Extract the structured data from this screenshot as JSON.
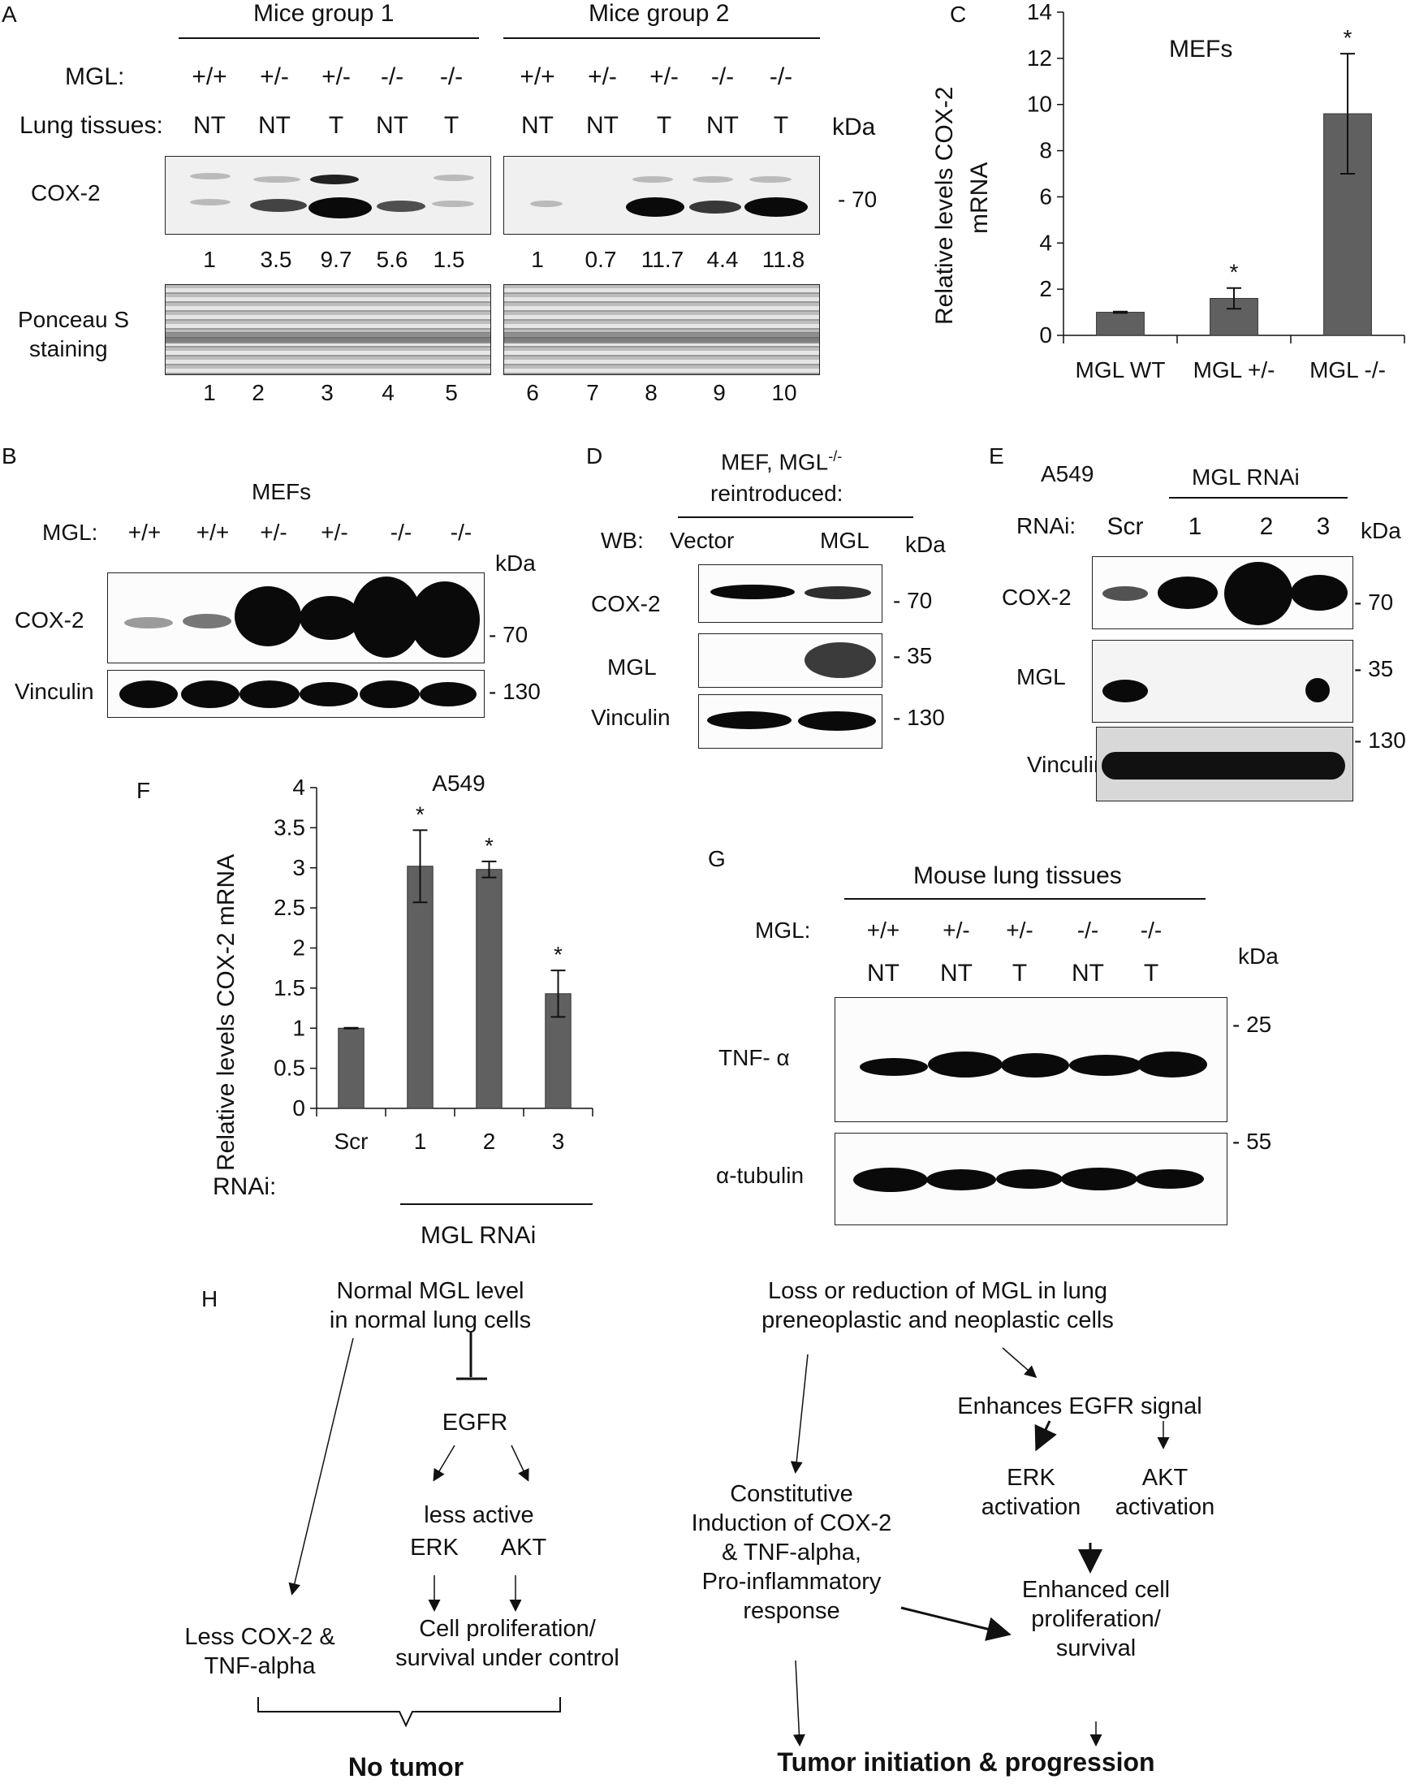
{
  "panels": {
    "A": {
      "letter": "A",
      "group1": "Mice group 1",
      "group2": "Mice group 2",
      "mgl_label": "MGL:",
      "tissue_label": "Lung tissues:",
      "genotypes_g1": [
        "+/+",
        "+/-",
        "+/-",
        "-/-",
        "-/-"
      ],
      "genotypes_g2": [
        "+/+",
        "+/-",
        "+/-",
        "-/-",
        "-/-"
      ],
      "tissues_g1": [
        "NT",
        "NT",
        "T",
        "NT",
        "T"
      ],
      "tissues_g2": [
        "NT",
        "NT",
        "T",
        "NT",
        "T"
      ],
      "kda": "kDa",
      "cox2": "COX-2",
      "marker": "- 70",
      "quant_g1": [
        "1",
        "3.5",
        "9.7",
        "5.6",
        "1.5"
      ],
      "quant_g2": [
        "1",
        "0.7",
        "11.7",
        "4.4",
        "11.8"
      ],
      "ponceau_1": "Ponceau S",
      "ponceau_2": "staining",
      "lanes_g1": [
        "1",
        "2",
        "3",
        "4",
        "5"
      ],
      "lanes_g2": [
        "6",
        "7",
        "8",
        "9",
        "10"
      ]
    },
    "B": {
      "letter": "B",
      "title": "MEFs",
      "mgl_label": "MGL:",
      "genotypes": [
        "+/+",
        "+/+",
        "+/-",
        "+/-",
        "-/-",
        "-/-"
      ],
      "kda": "kDa",
      "cox2": "COX-2",
      "vinculin": "Vinculin",
      "m70": "- 70",
      "m130": "- 130"
    },
    "C": {
      "letter": "C",
      "inset": "MEFs",
      "ylabel_1": "Relative levels COX-2",
      "ylabel_2": "mRNA"
    },
    "D": {
      "letter": "D",
      "title_1": "MEF, MGL",
      "title_sup": "-/-",
      "title_2": "reintroduced:",
      "wb": "WB:",
      "vector": "Vector",
      "mgl": "MGL",
      "kda": "kDa",
      "cox2": "COX-2",
      "mgl_row": "MGL",
      "vinculin": "Vinculin",
      "m70": "- 70",
      "m35": "- 35",
      "m130": "- 130"
    },
    "E": {
      "letter": "E",
      "cell": "A549",
      "group": "MGL RNAi",
      "rnai": "RNAi:",
      "lanes": [
        "Scr",
        "1",
        "2",
        "3"
      ],
      "kda": "kDa",
      "cox2": "COX-2",
      "mgl": "MGL",
      "vinculin": "Vinculin",
      "m70": "- 70",
      "m35": "- 35",
      "m130": "- 130"
    },
    "F": {
      "letter": "F",
      "ylabel": "Relative levels COX-2 mRNA",
      "rnai": "RNAi:",
      "group": "MGL RNAi"
    },
    "G": {
      "letter": "G",
      "title": "Mouse lung tissues",
      "mgl_label": "MGL:",
      "genotypes": [
        "+/+",
        "+/-",
        "+/-",
        "-/-",
        "-/-"
      ],
      "tissues": [
        "NT",
        "NT",
        "T",
        "NT",
        "T"
      ],
      "kda": "kDa",
      "tnf": "TNF- α",
      "tubulin": "α-tubulin",
      "m25": "- 25",
      "m55": "- 55"
    },
    "H": {
      "letter": "H",
      "normal_1": "Normal MGL level",
      "normal_2": "in normal lung cells",
      "egfr": "EGFR",
      "less_active": "less active",
      "erk": "ERK",
      "akt": "AKT",
      "less_cox_1": "Less COX-2 &",
      "less_cox_2": "TNF-alpha",
      "prolif_1": "Cell proliferation/",
      "prolif_2": "survival under control",
      "no_tumor": "No tumor",
      "loss_1": "Loss or reduction of MGL in lung",
      "loss_2": "preneoplastic and neoplastic cells",
      "enh_egfr": "Enhances EGFR signal",
      "erk_act_1": "ERK",
      "erk_act_2": "activation",
      "akt_act_1": "AKT",
      "akt_act_2": "activation",
      "const_1": "Constitutive",
      "const_2": "Induction of COX-2",
      "const_3": "& TNF-alpha,",
      "const_4": "Pro-inflammatory",
      "const_5": "response",
      "enh_prolif_1": "Enhanced cell",
      "enh_prolif_2": "proliferation/",
      "enh_prolif_3": "survival",
      "tumor": "Tumor initiation & progression"
    }
  },
  "chart_data": [
    {
      "type": "bar",
      "panel": "C",
      "title": "MEFs",
      "ylabel": "Relative levels COX-2 mRNA",
      "categories": [
        "MGL WT",
        "MGL +/-",
        "MGL -/-"
      ],
      "values": [
        1.0,
        1.6,
        9.6
      ],
      "errors": [
        0.03,
        0.45,
        2.6
      ],
      "significance": [
        "",
        "*",
        "*"
      ],
      "yticks": [
        "0",
        "2",
        "4",
        "6",
        "8",
        "10",
        "12",
        "14"
      ],
      "ylim": [
        0,
        14
      ],
      "bar_color": "#606060"
    },
    {
      "type": "bar",
      "panel": "F",
      "title": "A549",
      "ylabel": "Relative levels COX-2 mRNA",
      "categories": [
        "Scr",
        "1",
        "2",
        "3"
      ],
      "values": [
        1.0,
        3.02,
        2.98,
        1.43
      ],
      "errors": [
        0.005,
        0.45,
        0.1,
        0.29
      ],
      "significance": [
        "",
        "*",
        "*",
        "*"
      ],
      "yticks": [
        "0",
        "0.5",
        "1",
        "1.5",
        "2",
        "2.5",
        "3",
        "3.5",
        "4"
      ],
      "ylim": [
        0,
        4
      ],
      "bar_color": "#606060"
    }
  ]
}
